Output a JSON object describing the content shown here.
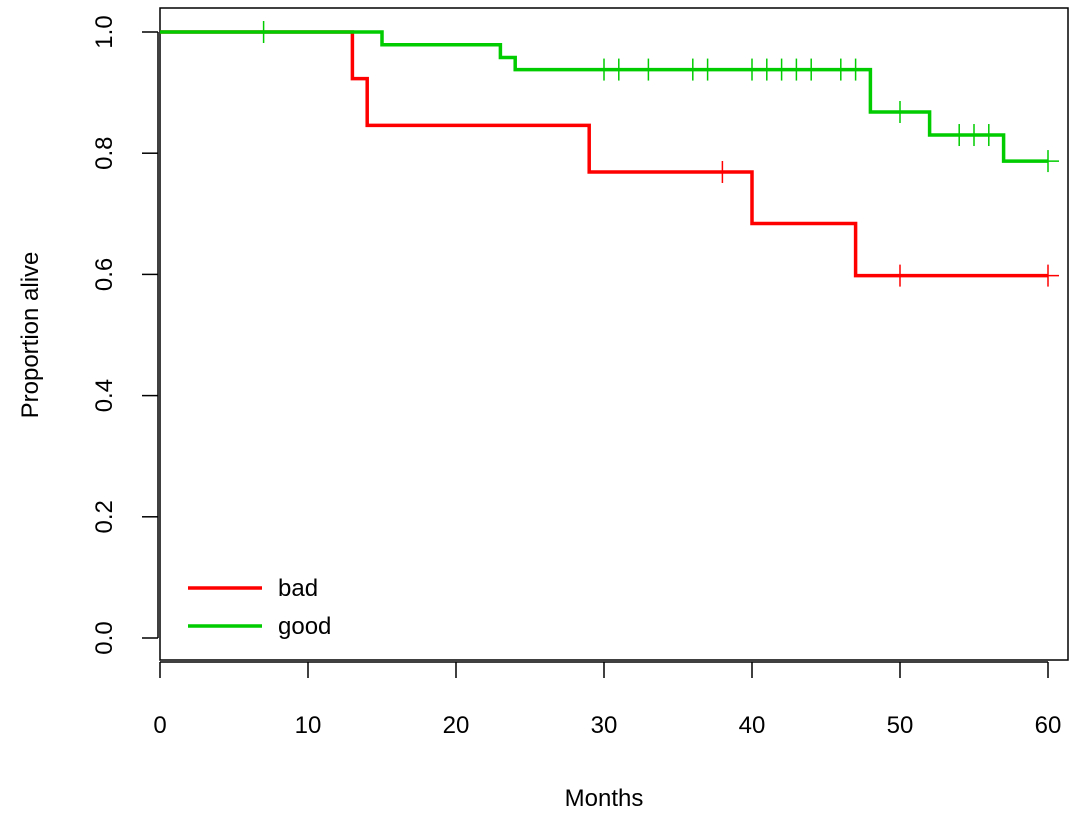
{
  "chart_data": {
    "type": "line",
    "title": "",
    "xlabel": "Months",
    "ylabel": "Proportion alive",
    "xlim": [
      0,
      61
    ],
    "ylim": [
      0,
      1
    ],
    "xticks": [
      0,
      10,
      20,
      30,
      40,
      50,
      60
    ],
    "yticks": [
      0.0,
      0.2,
      0.4,
      0.6,
      0.8,
      1.0
    ],
    "xtick_labels": [
      "0",
      "10",
      "20",
      "30",
      "40",
      "50",
      "60"
    ],
    "ytick_labels": [
      "0.0",
      "0.2",
      "0.4",
      "0.6",
      "0.8",
      "1.0"
    ],
    "step": true,
    "legend_position": "bottom-left",
    "series": [
      {
        "name": "bad",
        "color": "#ff0000",
        "x": [
          0,
          13,
          14,
          29,
          40,
          47,
          60
        ],
        "y": [
          1.0,
          0.923,
          0.846,
          0.769,
          0.684,
          0.598,
          0.598
        ],
        "censor_x": [
          38,
          50,
          60
        ]
      },
      {
        "name": "good",
        "color": "#00cc00",
        "x": [
          0,
          15,
          23,
          24,
          48,
          52,
          57,
          60
        ],
        "y": [
          1.0,
          0.979,
          0.958,
          0.938,
          0.868,
          0.83,
          0.787,
          0.787
        ],
        "censor_x": [
          7,
          30,
          31,
          33,
          36,
          37,
          40,
          41,
          42,
          43,
          44,
          46,
          47,
          50,
          54,
          55,
          56,
          60
        ]
      }
    ]
  }
}
